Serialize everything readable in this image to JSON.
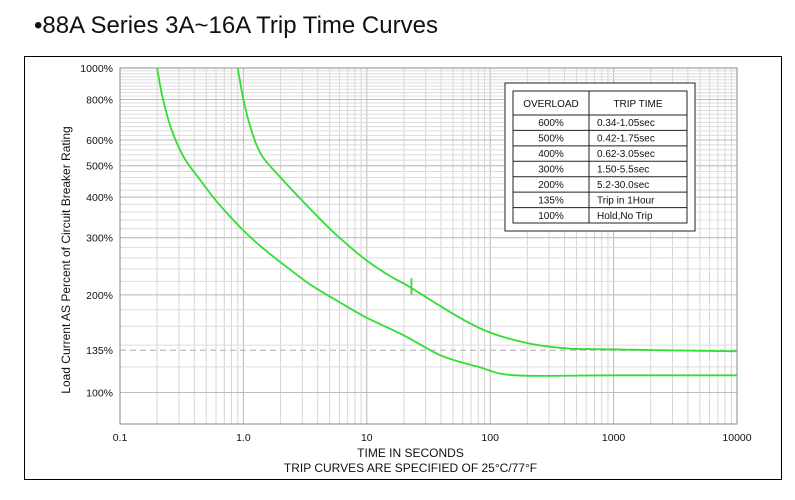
{
  "page": {
    "title_bullet": "•",
    "title": "88A Series 3A~16A Trip Time Curves"
  },
  "chart_data": {
    "type": "line",
    "title": "88A Series 3A~16A Trip Time Curves",
    "xlabel": "TIME IN SECONDS",
    "xlabel_note": "TRIP CURVES ARE SPECIFIED OF 25°C/77°F",
    "ylabel": "Load Current AS Percent of Circuit Breaker Rating",
    "x_scale": "log",
    "xlim": [
      0.1,
      10000
    ],
    "x_ticks": [
      "0.1",
      "1.0",
      "10",
      "100",
      "1000",
      "10000"
    ],
    "y_scale": "log",
    "ylim": [
      80,
      1000
    ],
    "y_ticks": [
      {
        "value": 1000,
        "label": "1000%"
      },
      {
        "value": 800,
        "label": "800%"
      },
      {
        "value": 600,
        "label": "600%"
      },
      {
        "value": 500,
        "label": "500%"
      },
      {
        "value": 400,
        "label": "400%"
      },
      {
        "value": 300,
        "label": "300%"
      },
      {
        "value": 200,
        "label": "200%"
      },
      {
        "value": 135,
        "label": "135%"
      },
      {
        "value": 100,
        "label": "100%"
      }
    ],
    "grid": true,
    "reference_line": {
      "y": 135,
      "style": "dashed"
    },
    "series": [
      {
        "color": "#33dd33",
        "points": [
          [
            0.2,
            1000
          ],
          [
            0.22,
            820
          ],
          [
            0.26,
            650
          ],
          [
            0.33,
            530
          ],
          [
            0.45,
            450
          ],
          [
            0.6,
            390
          ],
          [
            0.8,
            345
          ],
          [
            1.1,
            305
          ],
          [
            1.5,
            275
          ],
          [
            2.2,
            245
          ],
          [
            3.5,
            215
          ],
          [
            6,
            190
          ],
          [
            10,
            170
          ],
          [
            20,
            150
          ],
          [
            40,
            130
          ],
          [
            80,
            120
          ],
          [
            160,
            113
          ],
          [
            1000,
            113
          ],
          [
            10000,
            113
          ]
        ]
      },
      {
        "color": "#33dd33",
        "points": [
          [
            0.9,
            1000
          ],
          [
            1.0,
            800
          ],
          [
            1.15,
            650
          ],
          [
            1.4,
            540
          ],
          [
            2,
            460
          ],
          [
            3,
            390
          ],
          [
            5,
            320
          ],
          [
            7,
            285
          ],
          [
            10,
            255
          ],
          [
            15,
            230
          ],
          [
            22,
            212
          ],
          [
            35,
            190
          ],
          [
            60,
            168
          ],
          [
            100,
            153
          ],
          [
            200,
            142
          ],
          [
            400,
            137
          ],
          [
            700,
            136
          ],
          [
            10000,
            134
          ]
        ]
      }
    ],
    "annotation_tick": {
      "x": 23,
      "y": [
        200,
        225
      ]
    },
    "table": {
      "headers": [
        "OVERLOAD",
        "TRIP TIME"
      ],
      "rows": [
        [
          "600%",
          "0.34-1.05sec"
        ],
        [
          "500%",
          "0.42-1.75sec"
        ],
        [
          "400%",
          "0.62-3.05sec"
        ],
        [
          "300%",
          "1.50-5.5sec"
        ],
        [
          "200%",
          "5.2-30.0sec"
        ],
        [
          "135%",
          "Trip in 1Hour"
        ],
        [
          "100%",
          "Hold,No Trip"
        ]
      ]
    }
  }
}
